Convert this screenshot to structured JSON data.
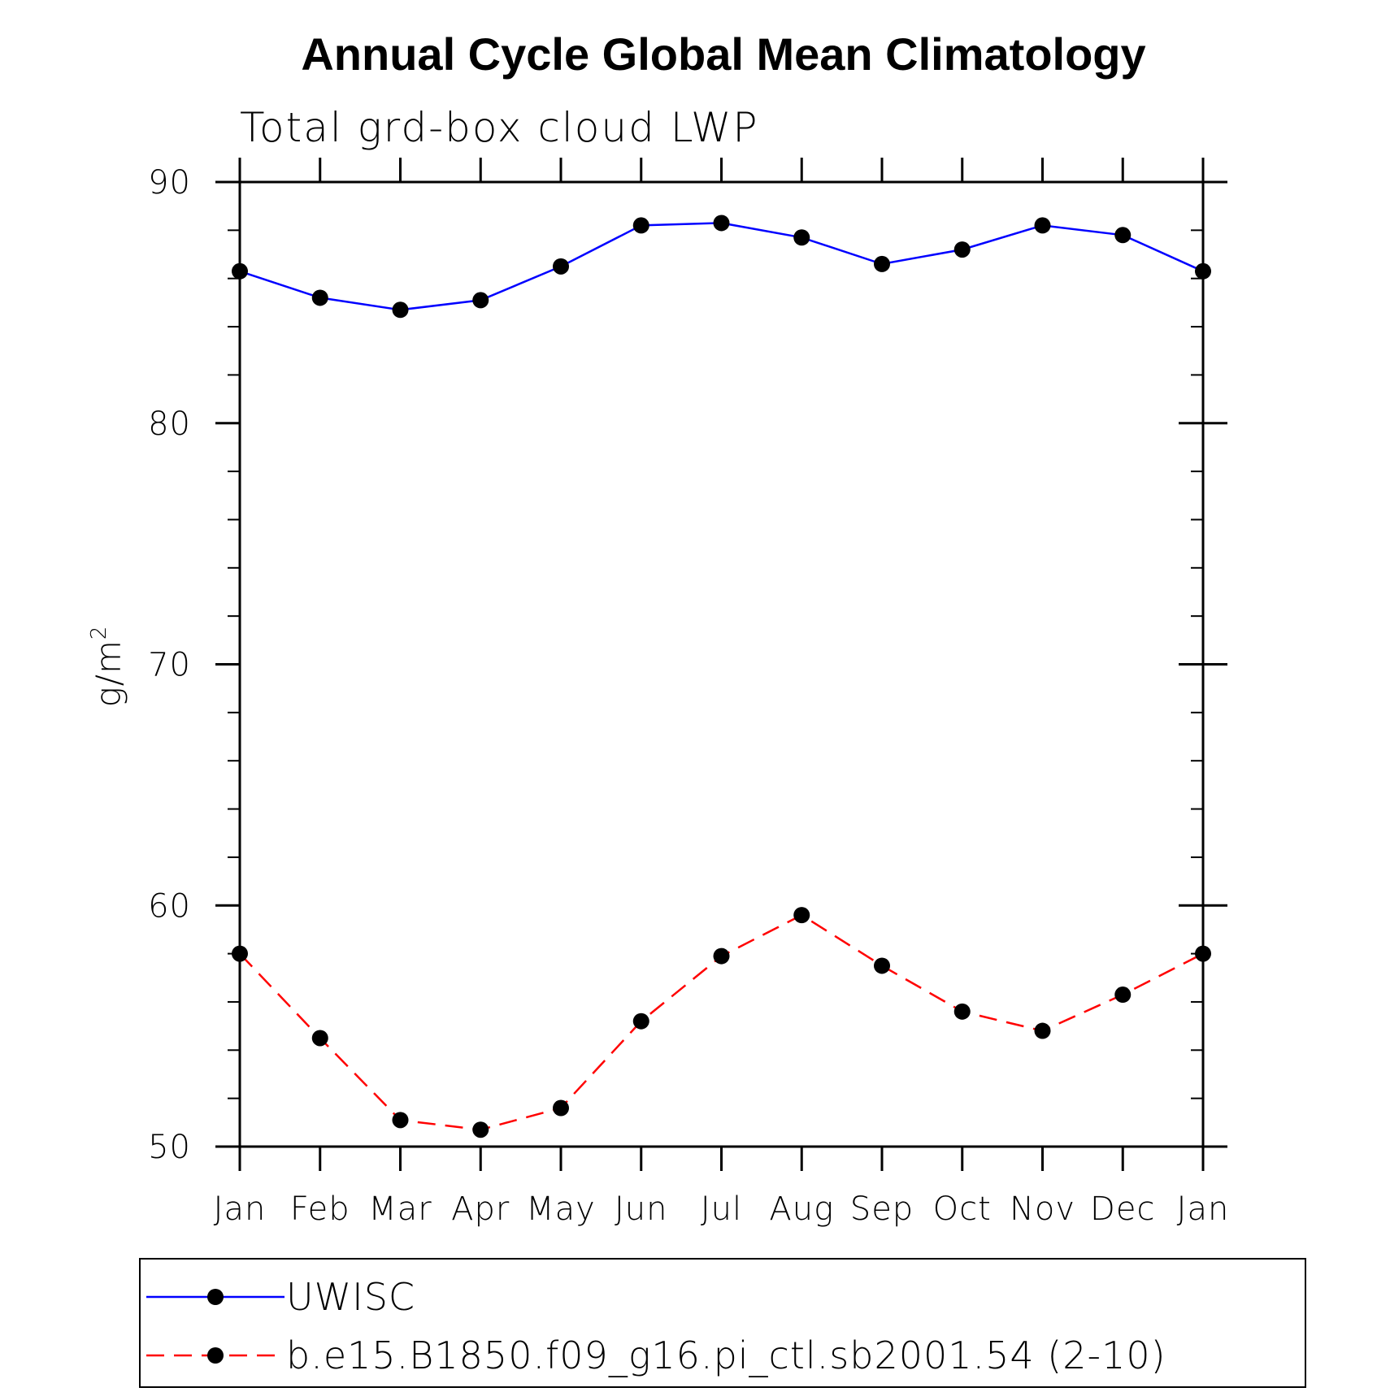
{
  "chart_data": {
    "type": "line",
    "title": "Annual Cycle Global Mean Climatology",
    "subtitle": "Total grd-box cloud LWP",
    "ylabel": "g/m",
    "ylabel_superscript": "2",
    "xlabel": "",
    "categories": [
      "Jan",
      "Feb",
      "Mar",
      "Apr",
      "May",
      "Jun",
      "Jul",
      "Aug",
      "Sep",
      "Oct",
      "Nov",
      "Dec",
      "Jan"
    ],
    "ylim": [
      50,
      90
    ],
    "yticks": [
      50,
      60,
      70,
      80,
      90
    ],
    "yticks_minor_step": 2,
    "grid": false,
    "legend_position": "bottom",
    "series": [
      {
        "name": "UWISC",
        "color": "#0000ff",
        "dash": "solid",
        "marker": "filled-circle",
        "values": [
          86.3,
          85.2,
          84.7,
          85.1,
          86.5,
          88.2,
          88.3,
          87.7,
          86.6,
          87.2,
          88.2,
          87.8,
          86.3
        ]
      },
      {
        "name": "b.e15.B1850.f09_g16.pi_ctl.sb2001.54 (2-10)",
        "color": "#ff0000",
        "dash": "dashed",
        "marker": "filled-circle",
        "values": [
          58.0,
          54.5,
          51.1,
          50.7,
          51.6,
          55.2,
          57.9,
          59.6,
          57.5,
          55.6,
          54.8,
          56.3,
          58.0
        ]
      }
    ]
  }
}
